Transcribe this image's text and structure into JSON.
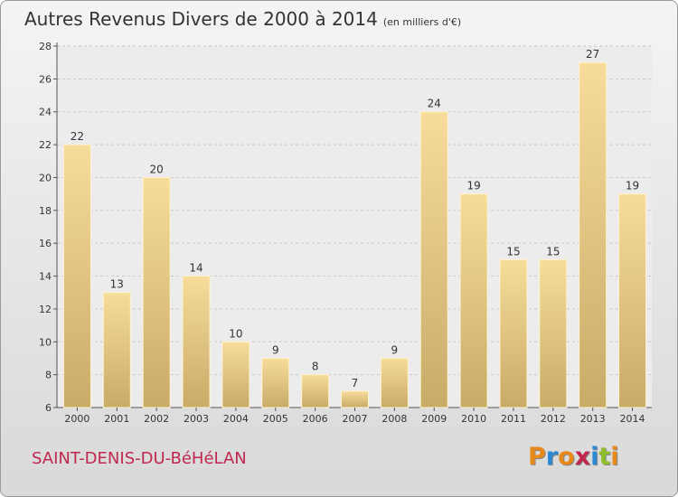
{
  "header": {
    "title": "Autres Revenus Divers de 2000 à 2014",
    "unit": "(en milliers d'€)"
  },
  "footer": {
    "commune": "SAINT-DENIS-DU-BéHéLAN",
    "logo_text": "Proxiti"
  },
  "colors": {
    "bar_light": "#f7dc9a",
    "bar_dark": "#c9ab68",
    "commune": "#c0284e",
    "logo": [
      "#e8891c",
      "#2a8ad4",
      "#e8891c",
      "#c0284e",
      "#2a8ad4",
      "#8cbf2a",
      "#e8891c"
    ]
  },
  "chart_data": {
    "type": "bar",
    "title": "Autres Revenus Divers de 2000 à 2014",
    "subtitle": "(en milliers d'€)",
    "xlabel": "",
    "ylabel": "",
    "categories": [
      "2000",
      "2001",
      "2002",
      "2003",
      "2004",
      "2005",
      "2006",
      "2007",
      "2008",
      "2009",
      "2010",
      "2011",
      "2012",
      "2013",
      "2014"
    ],
    "values": [
      22,
      13,
      20,
      14,
      10,
      9,
      8,
      7,
      9,
      24,
      19,
      15,
      15,
      27,
      19
    ],
    "ylim": [
      6,
      28
    ],
    "yticks": [
      6,
      8,
      10,
      12,
      14,
      16,
      18,
      20,
      22,
      24,
      26,
      28
    ],
    "grid": true,
    "legend": "none"
  }
}
